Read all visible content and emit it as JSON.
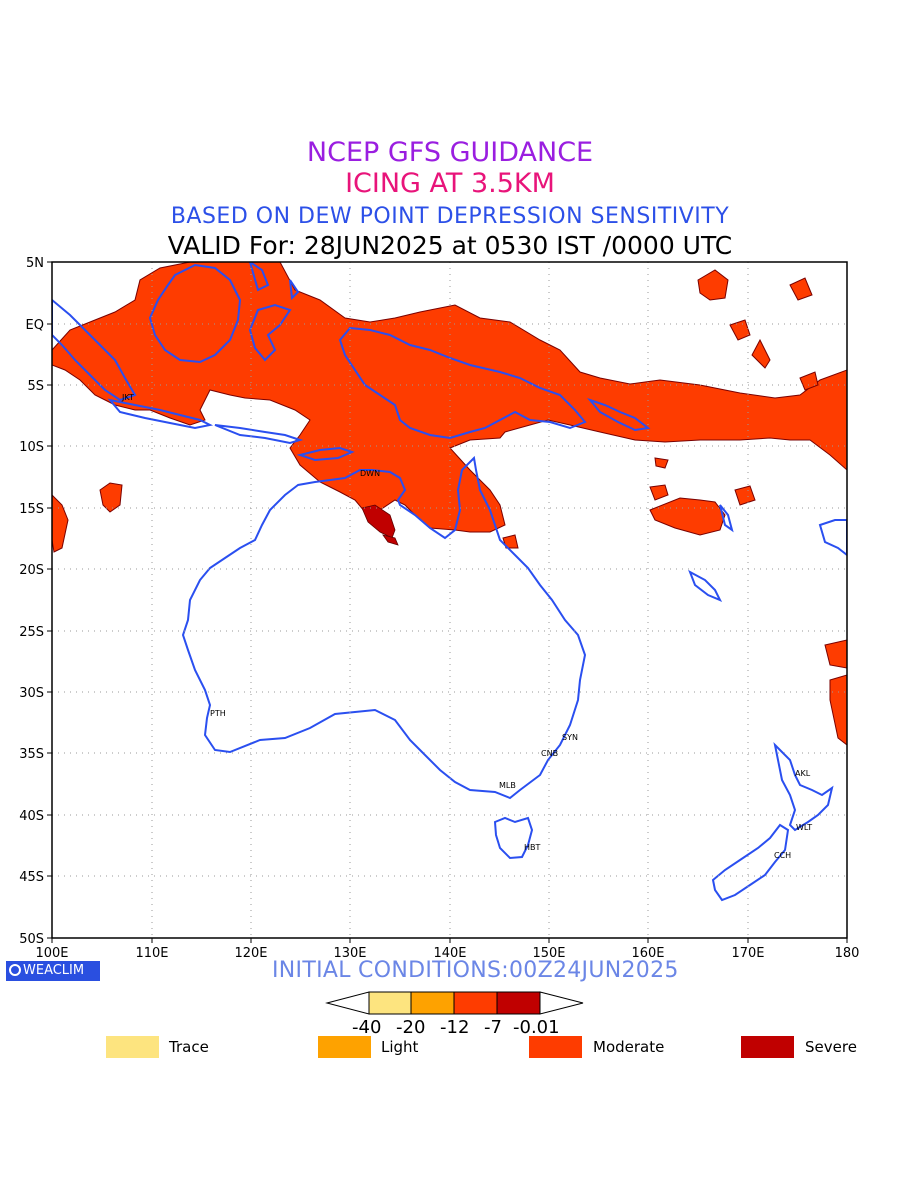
{
  "titles": {
    "line1": "NCEP GFS GUIDANCE",
    "line2": "ICING AT 3.5KM",
    "line3": "BASED ON DEW POINT DEPRESSION SENSITIVITY",
    "line4": "VALID For: 28JUN2025 at 0530 IST /0000 UTC"
  },
  "axes": {
    "lat_labels": [
      "5N",
      "EQ",
      "5S",
      "10S",
      "15S",
      "20S",
      "25S",
      "30S",
      "35S",
      "40S",
      "45S",
      "50S"
    ],
    "lon_labels": [
      "100E",
      "110E",
      "120E",
      "130E",
      "140E",
      "150E",
      "160E",
      "170E",
      "180"
    ]
  },
  "cities": {
    "jkt": "JKT",
    "dwn": "DWN",
    "pth": "PTH",
    "syn": "SYN",
    "cnb": "CNB",
    "mlb": "MLB",
    "hbt": "HBT",
    "akl": "AKL",
    "wlt": "WLT",
    "cch": "CCH"
  },
  "footer": {
    "logo": "WEACLIM",
    "initial_conditions": "INITIAL CONDITIONS:00Z24JUN2025"
  },
  "colorbar": {
    "ticks": [
      "-40",
      "-20",
      "-12",
      "-7",
      "-0.01"
    ],
    "colors": [
      "#fde47f",
      "#fea200",
      "#fe3c00",
      "#c00000"
    ]
  },
  "legend": [
    {
      "label": "Trace",
      "color": "#fde47f"
    },
    {
      "label": "Light",
      "color": "#fea200"
    },
    {
      "label": "Moderate",
      "color": "#fe3c00"
    },
    {
      "label": "Severe",
      "color": "#c00000"
    }
  ]
}
